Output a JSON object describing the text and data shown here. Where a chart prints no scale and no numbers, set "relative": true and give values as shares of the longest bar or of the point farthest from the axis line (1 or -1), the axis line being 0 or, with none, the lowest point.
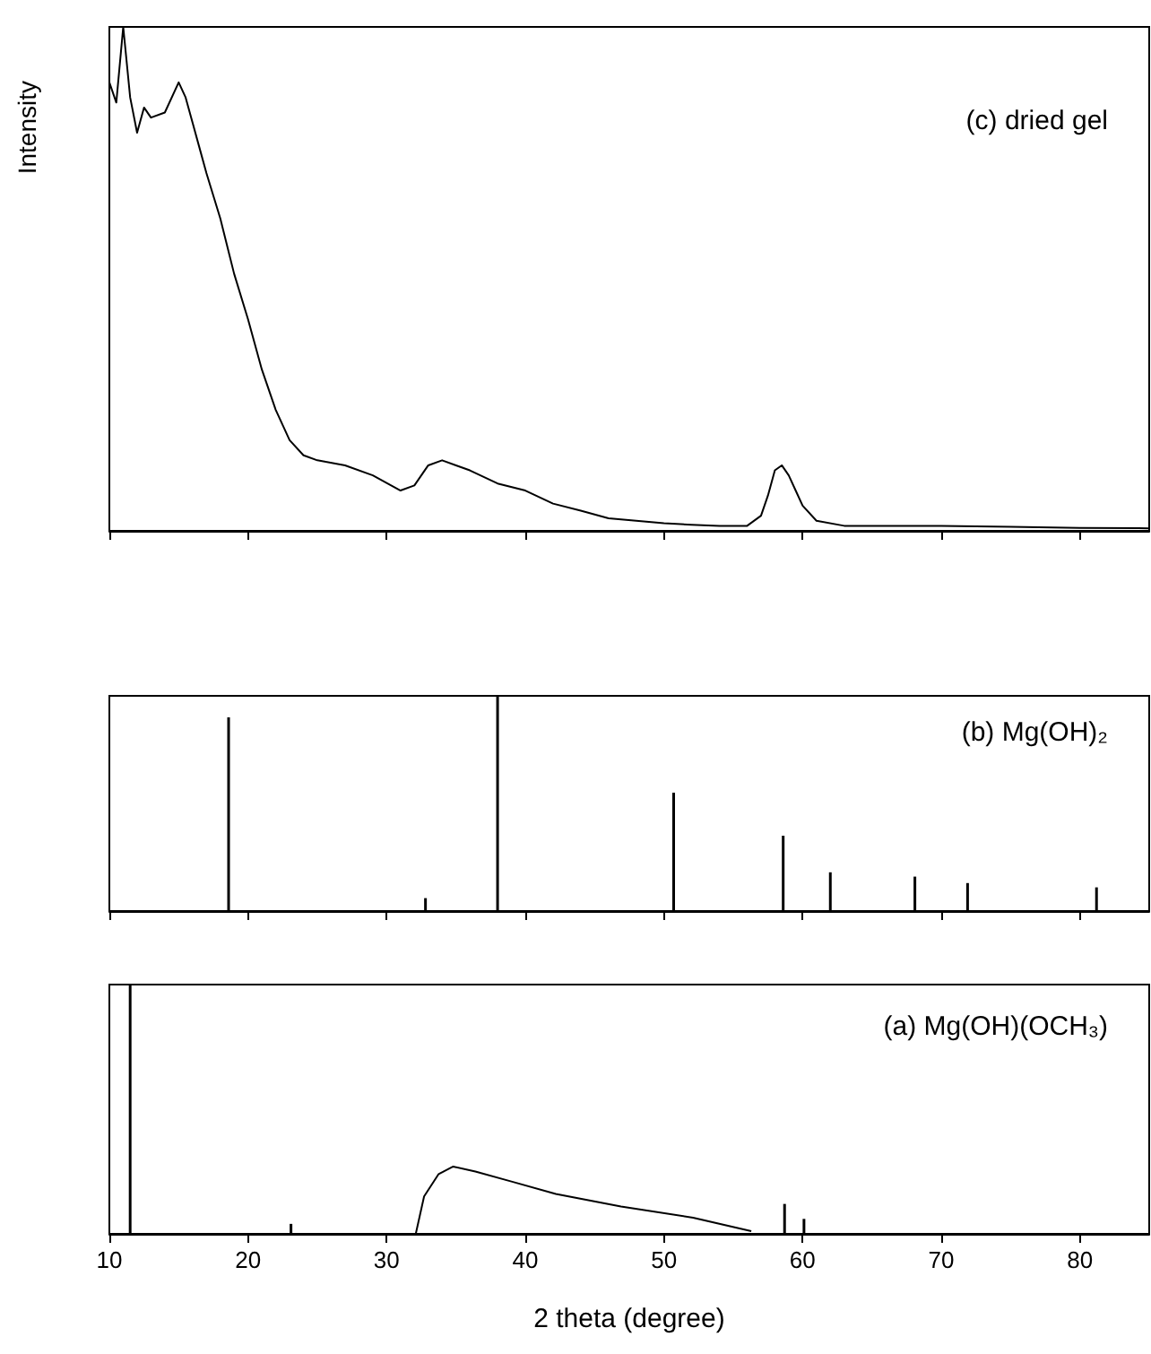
{
  "chart_data": [
    {
      "type": "line",
      "ylabel": "Intensity",
      "annotations": [
        "(c) dried gel"
      ],
      "relative": true,
      "tick_labels": false,
      "xlim": [
        10,
        85
      ],
      "xticks": [
        10,
        20,
        30,
        40,
        50,
        60,
        70,
        80
      ],
      "series": [
        {
          "color": "#000000",
          "x": [
            10,
            10.5,
            11,
            11.5,
            12,
            12.5,
            13,
            14,
            15,
            15.5,
            16,
            16.5,
            17,
            18,
            19,
            20,
            21,
            22,
            23,
            24,
            25,
            27,
            29,
            31,
            32,
            33,
            34,
            35,
            36,
            38,
            40,
            42,
            44,
            46,
            48,
            50,
            52,
            54,
            56,
            57,
            57.5,
            58,
            58.5,
            59,
            59.5,
            60,
            61,
            63,
            66,
            70,
            75,
            80,
            85
          ],
          "values": [
            0.89,
            0.85,
            1.0,
            0.86,
            0.79,
            0.84,
            0.82,
            0.83,
            0.89,
            0.86,
            0.81,
            0.76,
            0.71,
            0.62,
            0.51,
            0.42,
            0.32,
            0.24,
            0.18,
            0.15,
            0.14,
            0.13,
            0.11,
            0.08,
            0.09,
            0.13,
            0.14,
            0.13,
            0.12,
            0.094,
            0.08,
            0.054,
            0.04,
            0.025,
            0.02,
            0.015,
            0.012,
            0.01,
            0.01,
            0.03,
            0.07,
            0.12,
            0.13,
            0.11,
            0.08,
            0.05,
            0.02,
            0.01,
            0.01,
            0.01,
            0.008,
            0.006,
            0.005
          ]
        }
      ]
    },
    {
      "type": "bar",
      "annotations": [
        "(b) Mg(OH)₂"
      ],
      "relative": true,
      "tick_labels": false,
      "xlim": [
        10,
        85
      ],
      "xticks": [
        10,
        20,
        30,
        40,
        50,
        60,
        70,
        80
      ],
      "series": [
        {
          "color": "#000000",
          "x": [
            18.6,
            32.8,
            38.0,
            50.7,
            58.6,
            62.0,
            68.1,
            71.9,
            81.2
          ],
          "values": [
            0.9,
            0.06,
            1.0,
            0.55,
            0.35,
            0.18,
            0.16,
            0.13,
            0.11
          ]
        }
      ]
    },
    {
      "type": "bar",
      "xlabel": "2 theta (degree)",
      "annotations": [
        "(a) Mg(OH)(OCH₃)"
      ],
      "relative": true,
      "tick_labels": "x",
      "xlim": [
        10,
        85
      ],
      "xticks": [
        10,
        20,
        30,
        40,
        50,
        60,
        70,
        80
      ],
      "series": [
        {
          "color": "#000000",
          "x": [
            11.5,
            23.1,
            58.7,
            60.1
          ],
          "values": [
            1.0,
            0.04,
            0.12,
            0.06
          ]
        },
        {
          "type": "line",
          "color": "#000000",
          "x": [
            32.1,
            32.7,
            33.75,
            34.8,
            36.4,
            39.0,
            42.2,
            46.9,
            52.1,
            56.3
          ],
          "values": [
            0,
            0.15,
            0.24,
            0.27,
            0.25,
            0.21,
            0.16,
            0.11,
            0.065,
            0.011
          ]
        }
      ]
    }
  ]
}
